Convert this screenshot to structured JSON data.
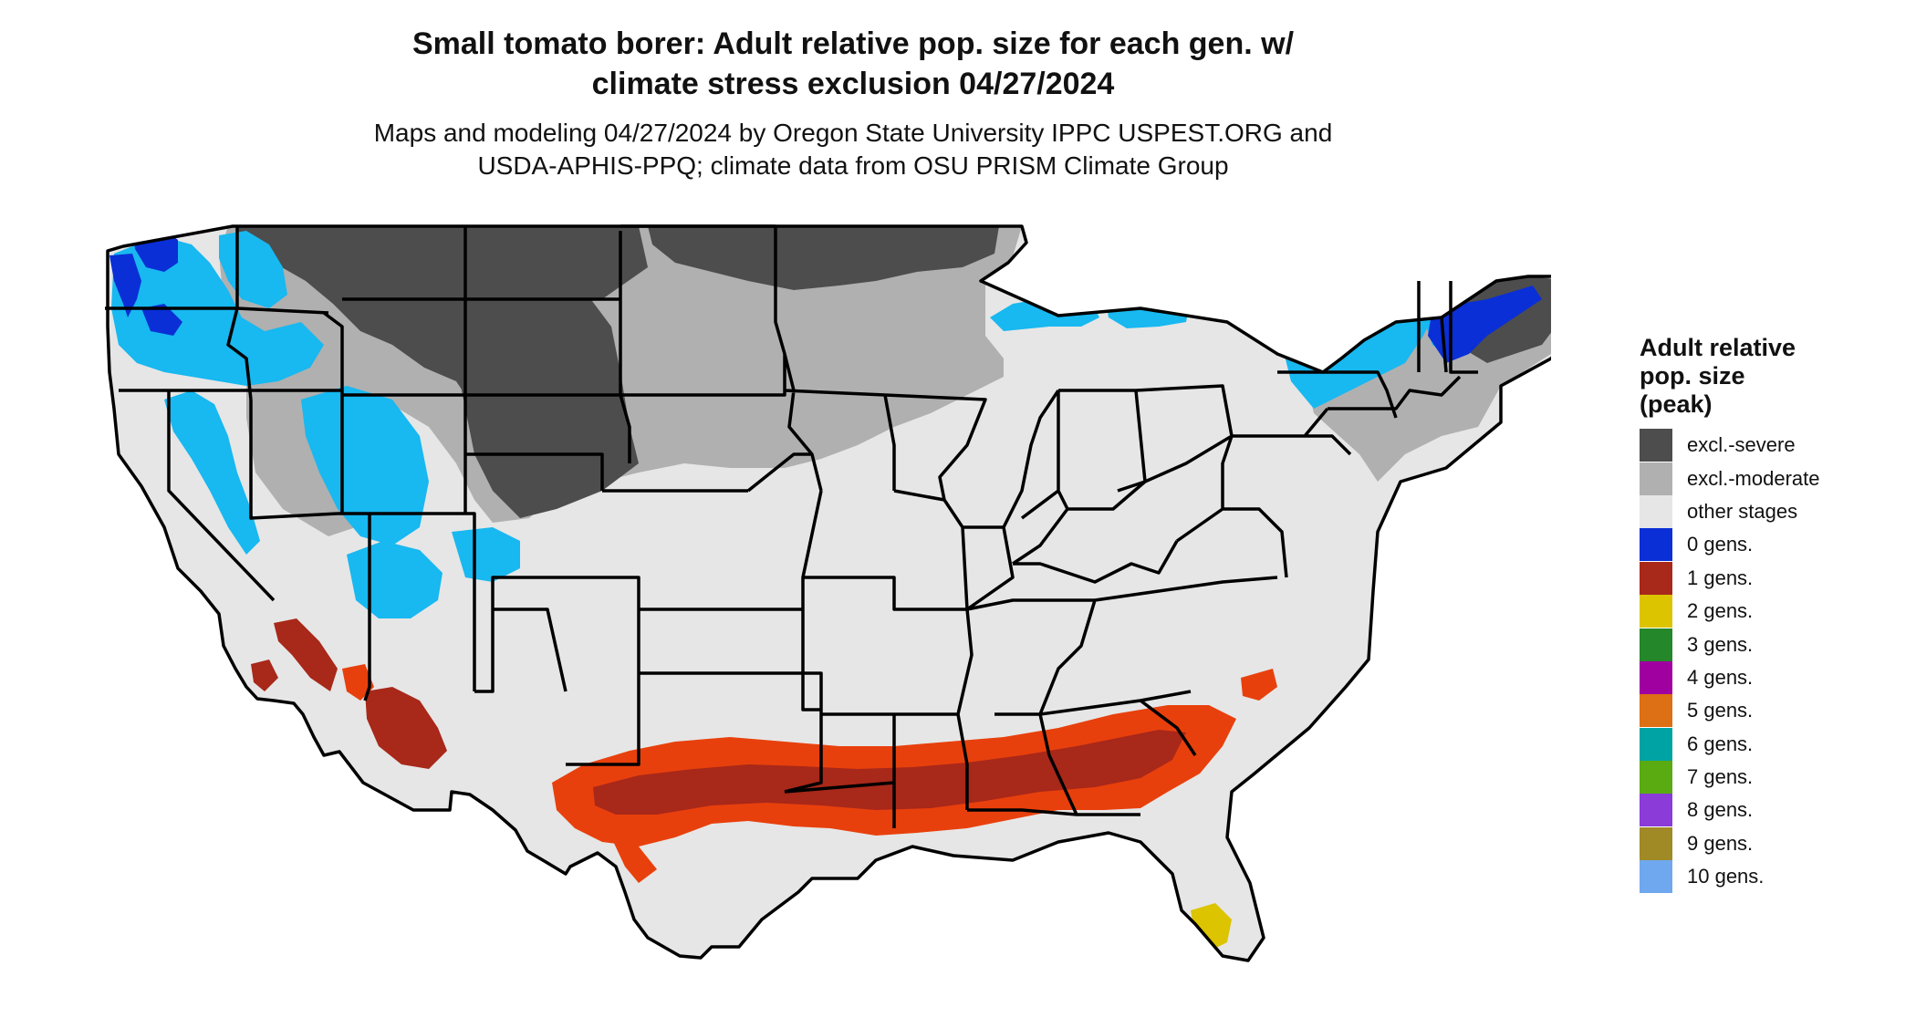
{
  "title": {
    "line1": "Small tomato borer: Adult relative pop. size for each gen. w/",
    "line2": "climate stress exclusion 04/27/2024"
  },
  "subtitle": {
    "line1": "Maps and modeling 04/27/2024 by Oregon State University IPPC USPEST.ORG and",
    "line2": "USDA-APHIS-PPQ; climate data from OSU PRISM Climate Group"
  },
  "legend": {
    "title_line1": "Adult relative",
    "title_line2": "pop. size",
    "title_line3": "(peak)",
    "items": [
      {
        "label": "excl.-severe",
        "color": "#4d4d4d"
      },
      {
        "label": "excl.-moderate",
        "color": "#b0b0b0"
      },
      {
        "label": "other stages",
        "color": "#e6e6e6"
      },
      {
        "label": "0 gens.",
        "color": "#0a2fd6"
      },
      {
        "label": "1 gens.",
        "color": "#a8281a"
      },
      {
        "label": "2 gens.",
        "color": "#dcc400"
      },
      {
        "label": "3 gens.",
        "color": "#24872a"
      },
      {
        "label": "4 gens.",
        "color": "#a000a0"
      },
      {
        "label": "5 gens.",
        "color": "#dd6f14"
      },
      {
        "label": "6 gens.",
        "color": "#00a3a3"
      },
      {
        "label": "7 gens.",
        "color": "#5aab12"
      },
      {
        "label": "8 gens.",
        "color": "#8a3bd8"
      },
      {
        "label": "9 gens.",
        "color": "#a08a26"
      },
      {
        "label": "10 gens.",
        "color": "#6fa8ef"
      }
    ]
  },
  "map_colors": {
    "light_blue": "#18b8f0",
    "orange_red": "#e8400c",
    "state_border": "#000000"
  }
}
